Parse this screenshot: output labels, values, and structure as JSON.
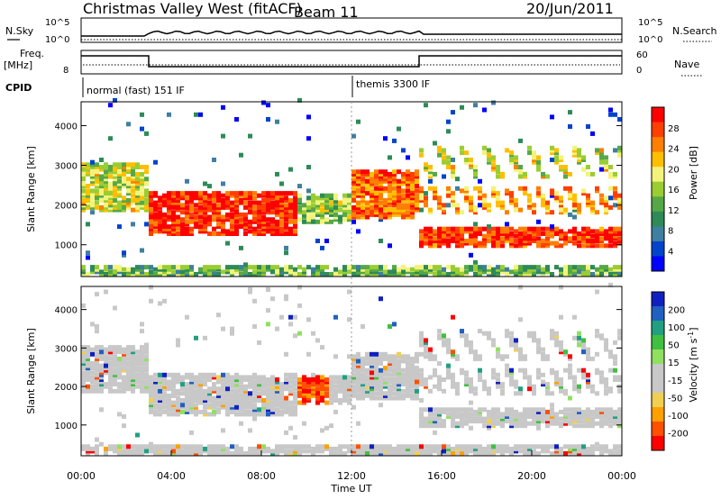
{
  "header": {
    "title": "Christmas Valley West (fitACF)",
    "beam": "Beam 11",
    "date": "20/Jun/2011"
  },
  "top_panels": {
    "nsky_label": "N.Sky",
    "nsearch_label": "N.Search",
    "nsky_ticks": [
      "10^5",
      "10^0"
    ],
    "nsearch_ticks": [
      "10^5",
      "10^0"
    ],
    "freq_label": "Freq.",
    "freq_unit": "[MHz]",
    "freq_ticks": [
      "8"
    ],
    "nave_label": "Nave",
    "nave_ticks": [
      "60",
      "0"
    ],
    "cpid_label": "CPID",
    "cpid_modes": [
      {
        "text": "normal (fast) 151 IF",
        "start": 0
      },
      {
        "text": "themis 3300 IF",
        "start": 12
      }
    ]
  },
  "chart_data": [
    {
      "type": "heatmap",
      "name": "power",
      "ylabel": "Slant Range [km]",
      "yticks": [
        "4000",
        "3000",
        "2000",
        "1000"
      ],
      "ylim": [
        200,
        4600
      ],
      "xlim": [
        0,
        24
      ],
      "colorbar_label": "Power [dB]",
      "colorbar_ticks": [
        "28",
        "24",
        "20",
        "16",
        "12",
        "8",
        "4"
      ],
      "colorbar": [
        "#0000ff",
        "#0044cc",
        "#3f7fa0",
        "#2e8b57",
        "#56a847",
        "#9acd32",
        "#f3f37b",
        "#ffbf00",
        "#ff7f00",
        "#ff3f00",
        "#ff0000"
      ]
    },
    {
      "type": "heatmap",
      "name": "velocity",
      "ylabel": "Slant Range [km]",
      "yticks": [
        "4000",
        "3000",
        "2000",
        "1000"
      ],
      "ylim": [
        200,
        4600
      ],
      "xlim": [
        0,
        24
      ],
      "colorbar_label": "Velocity [m s",
      "colorbar_sup": "-1",
      "colorbar_ticks": [
        "200",
        "100",
        "50",
        "15",
        "-15",
        "-50",
        "-100",
        "-200"
      ],
      "colorbar": [
        "#ff0000",
        "#ff5000",
        "#ffa000",
        "#f0d050",
        "#c8c8c8",
        "#c8c8c8",
        "#90e060",
        "#40c040",
        "#20a080",
        "#2060c0",
        "#1020c0"
      ]
    }
  ],
  "time_axis": {
    "ticks": [
      "00:00",
      "04:00",
      "08:00",
      "12:00",
      "16:00",
      "20:00",
      "00:00"
    ],
    "xlabel": "Time UT"
  }
}
